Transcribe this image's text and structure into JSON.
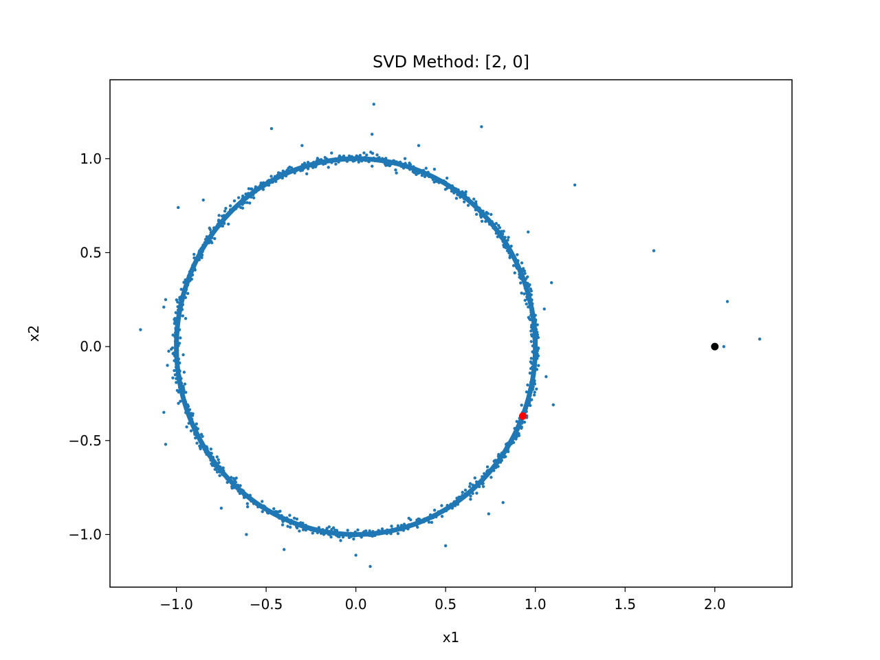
{
  "chart_data": {
    "type": "scatter",
    "title": "SVD Method: [2, 0]",
    "xlabel": "x1",
    "ylabel": "x2",
    "xlim": [
      -1.37,
      2.43
    ],
    "ylim": [
      -1.28,
      1.42
    ],
    "xticks": [
      -1.0,
      -0.5,
      0.0,
      0.5,
      1.0,
      1.5,
      2.0
    ],
    "xtick_labels": [
      "−1.0",
      "−0.5",
      "0.0",
      "0.5",
      "1.0",
      "1.5",
      "2.0"
    ],
    "yticks": [
      -1.0,
      -0.5,
      0.0,
      0.5,
      1.0
    ],
    "ytick_labels": [
      "−1.0",
      "−0.5",
      "0.0",
      "0.5",
      "1.0"
    ],
    "grid": false,
    "series": [
      {
        "color": "#1f77b4",
        "ring_center": [
          0.0,
          0.0
        ],
        "ring_radius": 1.0,
        "ring_thickness": 0.04,
        "ring_point_count": 1100,
        "outliers": [
          [
            0.1,
            1.29
          ],
          [
            0.7,
            1.17
          ],
          [
            0.09,
            1.13
          ],
          [
            -0.47,
            1.16
          ],
          [
            1.22,
            0.86
          ],
          [
            1.66,
            0.51
          ],
          [
            -0.99,
            0.74
          ],
          [
            1.09,
            0.34
          ],
          [
            2.07,
            0.24
          ],
          [
            2.25,
            0.04
          ],
          [
            2.05,
            0.0
          ],
          [
            -1.2,
            0.09
          ],
          [
            -1.07,
            0.21
          ],
          [
            1.1,
            -0.31
          ],
          [
            -1.07,
            -0.35
          ],
          [
            -1.06,
            -0.52
          ],
          [
            0.74,
            -0.89
          ],
          [
            -0.61,
            -1.0
          ],
          [
            0.0,
            -1.11
          ],
          [
            0.08,
            -1.17
          ],
          [
            1.06,
            -0.16
          ],
          [
            -1.05,
            -0.1
          ],
          [
            0.96,
            0.61
          ],
          [
            -0.85,
            0.78
          ],
          [
            -0.75,
            -0.86
          ],
          [
            0.82,
            -0.83
          ],
          [
            0.5,
            -1.06
          ],
          [
            -0.4,
            -1.08
          ],
          [
            0.35,
            1.07
          ],
          [
            -0.3,
            1.07
          ],
          [
            1.05,
            0.2
          ],
          [
            -1.06,
            0.25
          ]
        ]
      },
      {
        "color": "#ff0000",
        "points": [
          [
            0.93,
            -0.37
          ]
        ]
      },
      {
        "color": "#000000",
        "points": [
          [
            2.0,
            0.0
          ]
        ]
      }
    ]
  }
}
